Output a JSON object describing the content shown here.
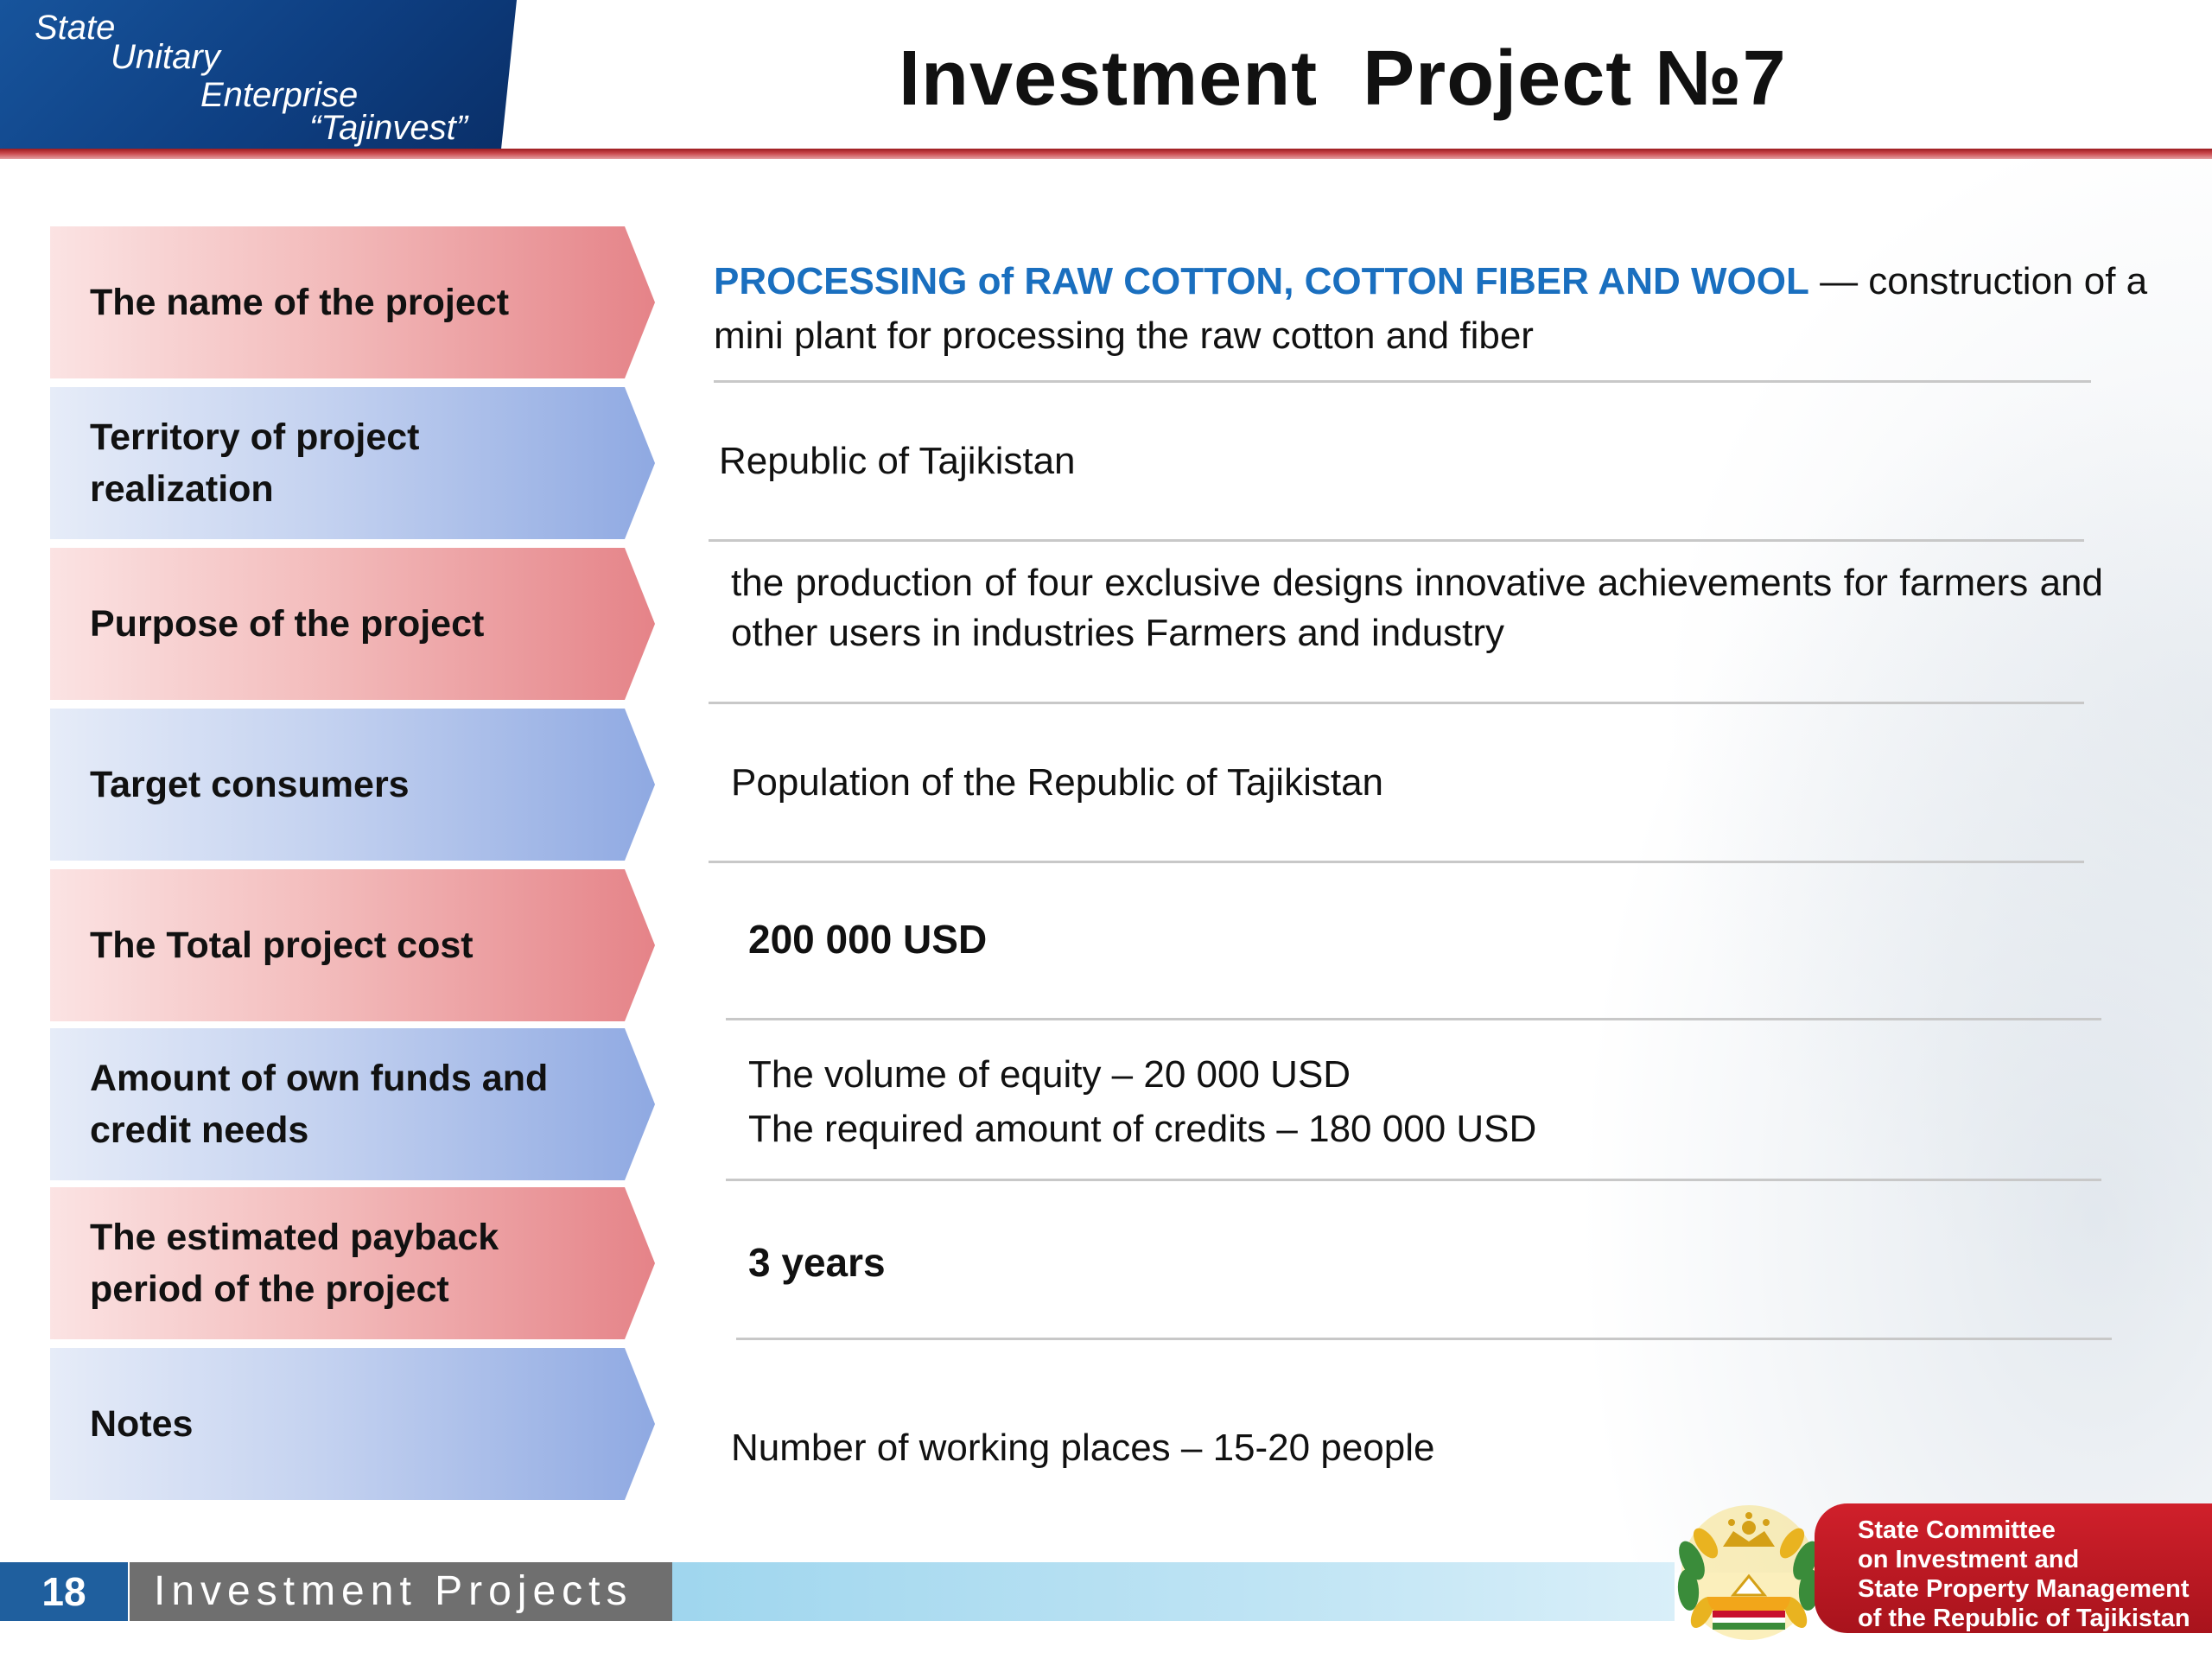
{
  "header": {
    "org_lines": [
      "State",
      "Unitary",
      "Enterprise",
      "“Tajinvest”"
    ],
    "title": "Investment  Project №7"
  },
  "rows": [
    {
      "label": "The name of the project",
      "value_highlight": "PROCESSING of RAW COTTON, COTTON FIBER AND WOOL",
      "value_text": " — construction of a mini plant for processing the raw cotton and fiber"
    },
    {
      "label": "Territory of project realization",
      "value": "Republic of Tajikistan"
    },
    {
      "label": "Purpose of the project",
      "value": "the production of four exclusive designs innovative achievements for farmers and other users in industries Farmers and industry"
    },
    {
      "label": "Target consumers",
      "value": "Population of the Republic of Tajikistan"
    },
    {
      "label": "The Total project cost",
      "value": "200 000 USD"
    },
    {
      "label": "Amount of own funds and credit needs",
      "value_lines": [
        "The volume of equity – 20 000 USD",
        "The required amount of credits – 180 000 USD"
      ]
    },
    {
      "label": "The estimated payback period of the project",
      "value": "3 years"
    },
    {
      "label": "Notes",
      "value": "Number of working places – 15-20 people"
    }
  ],
  "footer": {
    "page_number": "18",
    "section": "Investment Projects",
    "committee_lines": [
      "State Committee",
      "on Investment and",
      "State Property Management",
      "of the Republic of Tajikistan"
    ]
  },
  "colors": {
    "brand_blue": "#0e3f82",
    "accent_red": "#c0161f",
    "highlight_blue": "#1a6fbf",
    "label_red": "#e58388",
    "label_blue": "#8fa9e2"
  },
  "icons": {
    "emblem": "tajikistan-state-emblem"
  }
}
